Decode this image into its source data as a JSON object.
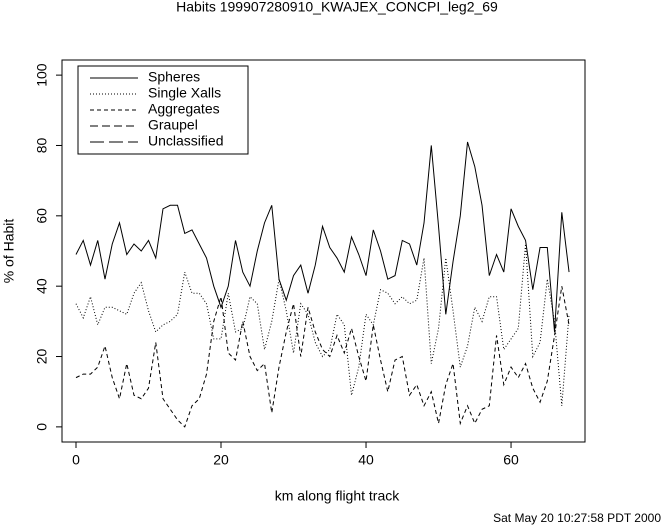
{
  "chart_data": {
    "type": "line",
    "title": "Habits 199907280910_KWAJEX_CONCPI_leg2_69",
    "x_label": "km along flight track",
    "y_label": "% of Habit",
    "footer": "Sat May 20 10:27:58 PDT 2000",
    "xlim": [
      -1.93,
      70.2
    ],
    "ylim": [
      -4.3,
      104.3
    ],
    "xticks": [
      0,
      20,
      40,
      60
    ],
    "yticks": [
      0,
      20,
      40,
      60,
      80,
      100
    ],
    "legend": "upper left",
    "series": [
      {
        "name": "Spheres",
        "color": "#000000",
        "dash": "none",
        "values": [
          49,
          53,
          46,
          53,
          42,
          52,
          58,
          49,
          52,
          50,
          53,
          48,
          62,
          63,
          63,
          55,
          56,
          52,
          48,
          40,
          34,
          40,
          53,
          44,
          40,
          50,
          58,
          63,
          42,
          36,
          43,
          46,
          38,
          46,
          57,
          51,
          48,
          44,
          54,
          49,
          43,
          56,
          50,
          42,
          43,
          53,
          52,
          46,
          58,
          80,
          57,
          32,
          47,
          60,
          81,
          74,
          63,
          43,
          49,
          44,
          62,
          57,
          53,
          39,
          51,
          51,
          27,
          61,
          44
        ]
      },
      {
        "name": "Single Xalls",
        "color": "#000000",
        "dash": "1 2",
        "values": [
          35,
          31,
          37,
          29,
          34,
          34,
          33,
          32,
          38,
          41,
          33,
          27,
          29,
          30,
          32,
          44,
          38,
          38,
          35,
          25,
          25,
          38,
          27,
          28,
          37,
          35,
          22,
          30,
          42,
          33,
          21,
          35,
          32,
          24,
          20,
          22,
          32,
          29,
          9,
          17,
          32,
          29,
          39,
          38,
          35,
          37,
          35,
          36,
          48,
          18,
          28,
          48,
          33,
          17,
          23,
          34,
          30,
          37,
          37,
          22,
          25,
          28,
          52,
          20,
          24,
          42,
          30,
          6,
          32
        ]
      },
      {
        "name": "Aggregates",
        "color": "#000000",
        "dash": "4 3",
        "values": [
          14,
          15,
          15,
          17,
          23,
          14,
          8,
          18,
          9,
          8,
          11,
          24,
          8,
          5,
          2,
          0,
          6,
          8,
          15,
          30,
          37,
          21,
          19,
          30,
          20,
          16,
          18,
          4,
          17,
          27,
          35,
          20,
          34,
          27,
          22,
          20,
          26,
          21,
          28,
          20,
          13,
          29,
          19,
          10,
          19,
          20,
          9,
          12,
          6,
          10,
          1,
          12,
          18,
          1,
          6,
          1,
          5,
          6,
          26,
          12,
          17,
          14,
          18,
          11,
          7,
          13,
          26,
          40,
          29
        ]
      },
      {
        "name": "Graupel",
        "color": "#000000",
        "dash": "8 4",
        "values": [
          null,
          null,
          null,
          null,
          null,
          null,
          null,
          null,
          null,
          null,
          null,
          null,
          null,
          null,
          null,
          null,
          null,
          null,
          null,
          null,
          null,
          null,
          null,
          null,
          null,
          null,
          null,
          null,
          null,
          null,
          null,
          null,
          null,
          null,
          null,
          null,
          null,
          null,
          null,
          null,
          null,
          null,
          null,
          null,
          null,
          null,
          null,
          null,
          null,
          null,
          null,
          null,
          null,
          null,
          null,
          null,
          null,
          null,
          null,
          null,
          null,
          null,
          null,
          null,
          null,
          null,
          null,
          null,
          null
        ]
      },
      {
        "name": "Unclassified",
        "color": "#000000",
        "dash": "14 5",
        "values": [
          null,
          null,
          null,
          null,
          null,
          null,
          null,
          null,
          null,
          null,
          null,
          null,
          null,
          null,
          null,
          null,
          null,
          null,
          null,
          null,
          null,
          null,
          null,
          null,
          null,
          null,
          null,
          null,
          null,
          null,
          null,
          null,
          null,
          null,
          null,
          null,
          null,
          null,
          null,
          null,
          null,
          null,
          null,
          null,
          null,
          null,
          null,
          null,
          null,
          null,
          null,
          null,
          null,
          null,
          null,
          null,
          null,
          null,
          null,
          null,
          null,
          null,
          null,
          null,
          null,
          null,
          null,
          null,
          null
        ]
      }
    ]
  }
}
